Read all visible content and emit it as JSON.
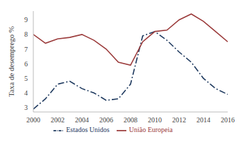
{
  "chart_data": {
    "type": "line",
    "y_label": "Taxa de desemprego %",
    "x": [
      2000,
      2001,
      2002,
      2003,
      2004,
      2005,
      2006,
      2007,
      2008,
      2009,
      2010,
      2011,
      2012,
      2013,
      2014,
      2015,
      2016
    ],
    "series": [
      {
        "name": "Estados Unidos",
        "color": "#1f3a5f",
        "line_style": "dashdot",
        "values": [
          2.9,
          3.6,
          4.6,
          4.8,
          4.3,
          4.0,
          3.5,
          3.6,
          4.6,
          7.9,
          8.2,
          7.6,
          6.8,
          6.1,
          5.0,
          4.3,
          3.9
        ]
      },
      {
        "name": "União Europeia",
        "color": "#9b3b3b",
        "line_style": "solid",
        "values": [
          8.0,
          7.4,
          7.7,
          7.8,
          8.0,
          7.6,
          7.0,
          6.1,
          5.9,
          7.5,
          8.2,
          8.3,
          9.0,
          9.4,
          8.9,
          8.2,
          7.5
        ]
      }
    ],
    "xlim": [
      2000,
      2016
    ],
    "xticks": [
      2000,
      2002,
      2004,
      2006,
      2008,
      2010,
      2012,
      2014,
      2016
    ],
    "ylim": [
      2.7,
      9.6
    ],
    "yticks": [
      3,
      4,
      5,
      6,
      7,
      8,
      9
    ],
    "grid": false,
    "legend": "bottom"
  }
}
